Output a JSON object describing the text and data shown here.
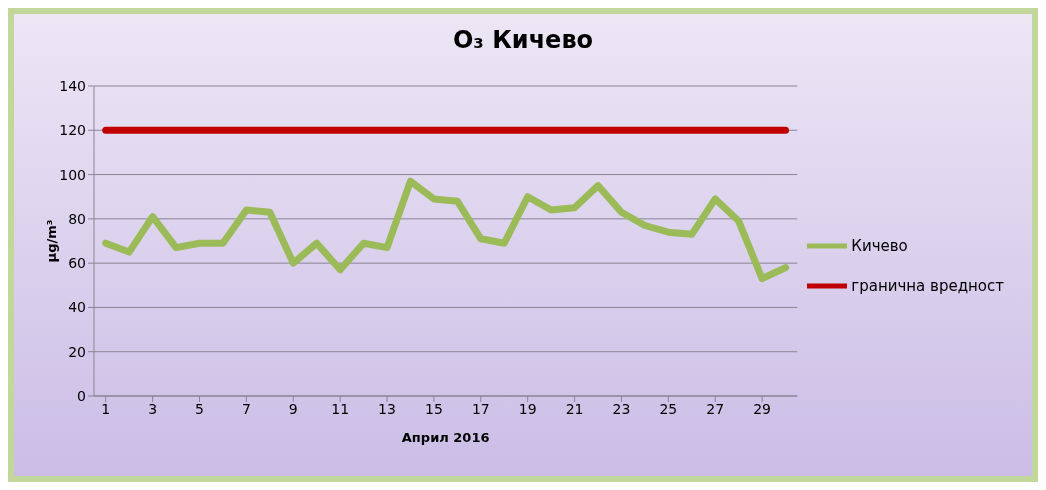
{
  "chart_data": {
    "type": "line",
    "title": "O₃ Кичево",
    "xlabel": "Април 2016",
    "ylabel": "µg/m³",
    "x": [
      1,
      2,
      3,
      4,
      5,
      6,
      7,
      8,
      9,
      10,
      11,
      12,
      13,
      14,
      15,
      16,
      17,
      18,
      19,
      20,
      21,
      22,
      23,
      24,
      25,
      26,
      27,
      28,
      29,
      30
    ],
    "xlim": [
      0.5,
      30.5
    ],
    "xticks": [
      1,
      3,
      5,
      7,
      9,
      11,
      13,
      15,
      17,
      19,
      21,
      23,
      25,
      27,
      29
    ],
    "series": [
      {
        "name": "Кичево",
        "color": "#9bbb59",
        "values": [
          69,
          65,
          81,
          67,
          69,
          69,
          84,
          83,
          60,
          69,
          57,
          69,
          67,
          97,
          89,
          88,
          71,
          69,
          90,
          84,
          85,
          95,
          83,
          77,
          74,
          73,
          89,
          79,
          53,
          58
        ]
      },
      {
        "name": "гранична вредност",
        "color": "#c00000",
        "values": [
          120,
          120,
          120,
          120,
          120,
          120,
          120,
          120,
          120,
          120,
          120,
          120,
          120,
          120,
          120,
          120,
          120,
          120,
          120,
          120,
          120,
          120,
          120,
          120,
          120,
          120,
          120,
          120,
          120,
          120
        ]
      }
    ],
    "ylim": [
      0,
      140
    ],
    "yticks": [
      0,
      20,
      40,
      60,
      80,
      100,
      120,
      140
    ],
    "grid": "y",
    "legend": "right",
    "marker": "none",
    "line_style": "solid"
  }
}
